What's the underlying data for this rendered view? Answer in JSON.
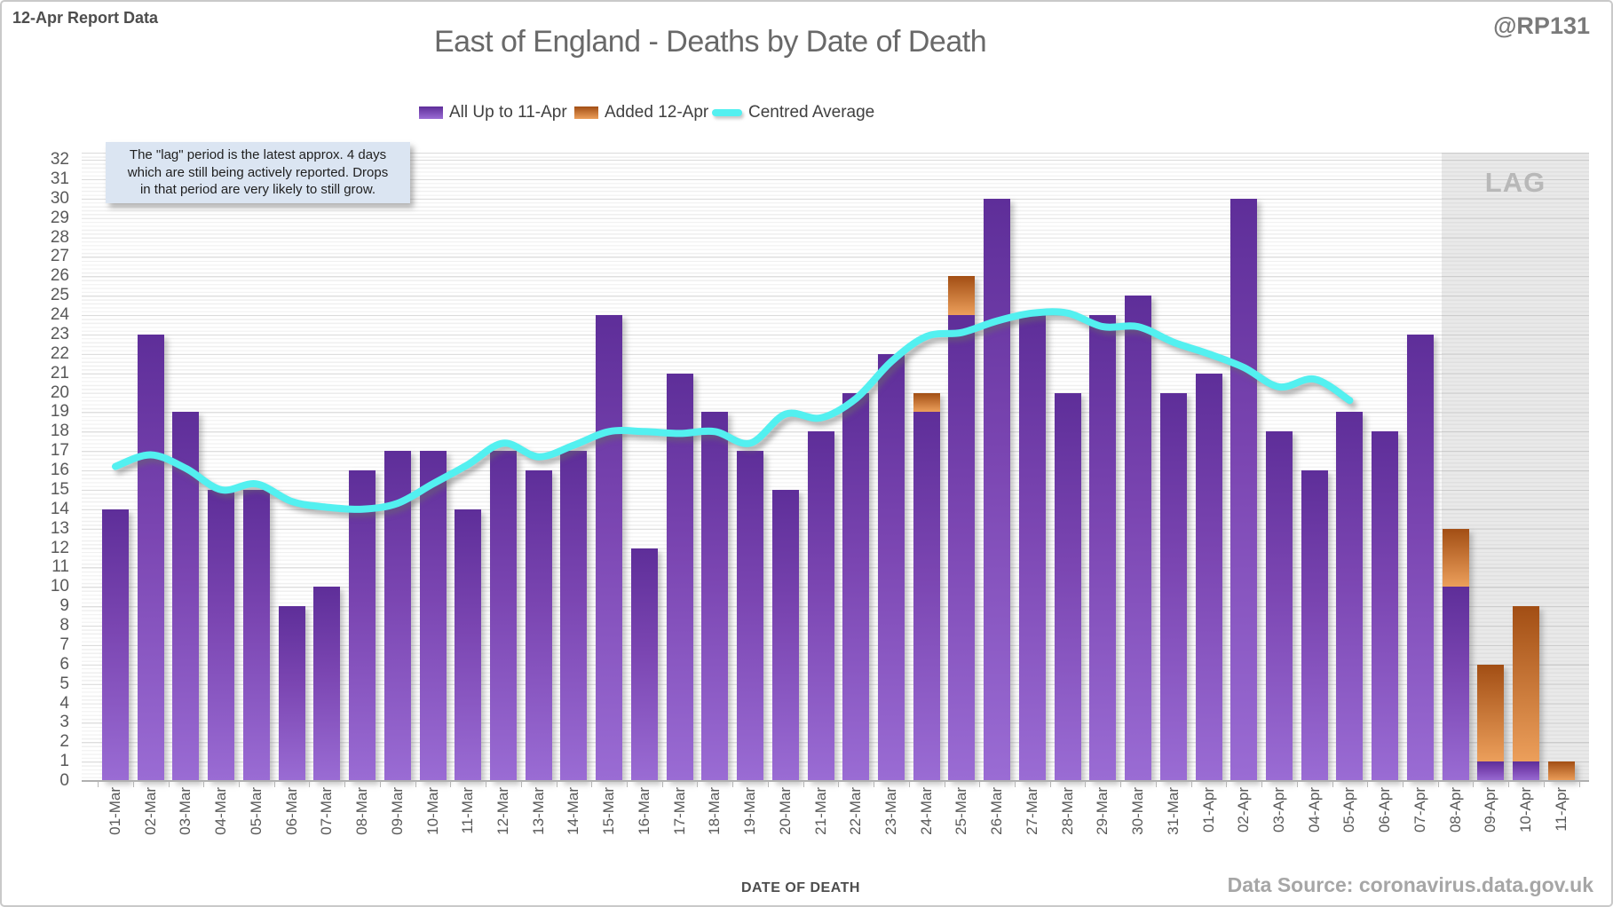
{
  "header": {
    "report_label": "12-Apr Report Data",
    "handle": "@RP131",
    "title": "East of England - Deaths by Date of Death"
  },
  "legend": [
    {
      "label": "All Up to 11-Apr",
      "type": "bar",
      "color_top": "#5e2e99",
      "color_bottom": "#9a6cd4"
    },
    {
      "label": "Added 12-Apr",
      "type": "bar",
      "color_top": "#a24e14",
      "color_bottom": "#ec9f5b"
    },
    {
      "label": "Centred Average",
      "type": "line",
      "color": "#53f0f0"
    }
  ],
  "annotation": {
    "lines": [
      "The \"lag\" period is the latest approx. 4 days",
      "which are still being actively reported.  Drops",
      "in that period are very likely to still grow."
    ]
  },
  "lag": {
    "label": "LAG",
    "dates": [
      "08-Apr",
      "09-Apr",
      "10-Apr",
      "11-Apr"
    ]
  },
  "axes": {
    "x_title": "DATE OF DEATH",
    "y_min": 0,
    "y_max": 32,
    "y_step": 1
  },
  "footer": {
    "source": "Data Source: coronavirus.data.gov.uk"
  },
  "colors": {
    "purple_top": "#5e2e99",
    "purple_mid": "#7b46b2",
    "purple_bottom": "#9a6cd4",
    "orange_top": "#a24e14",
    "orange_bottom": "#ec9f5b",
    "line_cyan": "#53f0f0",
    "lag_bg": "#e9e9e9",
    "annotation_bg": "#dbe5f2"
  },
  "chart_data": {
    "type": "bar",
    "subtype": "stacked-with-line",
    "title": "East of England - Deaths by Date of Death",
    "xlabel": "DATE OF DEATH",
    "ylabel": "",
    "ylim": [
      0,
      32
    ],
    "grid": true,
    "legend_position": "top",
    "categories": [
      "01-Mar",
      "02-Mar",
      "03-Mar",
      "04-Mar",
      "05-Mar",
      "06-Mar",
      "07-Mar",
      "08-Mar",
      "09-Mar",
      "10-Mar",
      "11-Mar",
      "12-Mar",
      "13-Mar",
      "14-Mar",
      "15-Mar",
      "16-Mar",
      "17-Mar",
      "18-Mar",
      "19-Mar",
      "20-Mar",
      "21-Mar",
      "22-Mar",
      "23-Mar",
      "24-Mar",
      "25-Mar",
      "26-Mar",
      "27-Mar",
      "28-Mar",
      "29-Mar",
      "30-Mar",
      "31-Mar",
      "01-Apr",
      "02-Apr",
      "03-Apr",
      "04-Apr",
      "05-Apr",
      "06-Apr",
      "07-Apr",
      "08-Apr",
      "09-Apr",
      "10-Apr",
      "11-Apr"
    ],
    "series": [
      {
        "name": "All Up to 11-Apr",
        "type": "bar",
        "values": [
          14,
          23,
          19,
          15,
          15,
          9,
          10,
          16,
          17,
          17,
          14,
          17,
          16,
          17,
          24,
          12,
          21,
          19,
          17,
          15,
          18,
          20,
          22,
          19,
          24,
          30,
          24,
          20,
          24,
          25,
          20,
          21,
          30,
          18,
          16,
          19,
          18,
          23,
          10,
          1,
          1,
          0
        ]
      },
      {
        "name": "Added 12-Apr",
        "type": "bar",
        "values": [
          0,
          0,
          0,
          0,
          0,
          0,
          0,
          0,
          0,
          0,
          0,
          0,
          0,
          0,
          0,
          0,
          0,
          0,
          0,
          0,
          0,
          0,
          0,
          1,
          2,
          0,
          0,
          0,
          0,
          0,
          0,
          0,
          0,
          0,
          0,
          0,
          0,
          0,
          3,
          5,
          8,
          1
        ]
      },
      {
        "name": "Centred Average",
        "type": "line",
        "values": [
          16.2,
          16.8,
          16.1,
          15,
          15.3,
          14.4,
          14.1,
          14,
          14.3,
          15.3,
          16.3,
          17.4,
          16.7,
          17.3,
          18,
          18,
          17.9,
          18,
          17.4,
          18.9,
          18.7,
          19.7,
          21.6,
          22.9,
          23.1,
          23.7,
          24.1,
          24.1,
          23.4,
          23.4,
          22.6,
          22,
          21.3,
          20.3,
          20.7,
          19.6,
          null,
          null,
          null,
          null,
          null,
          null
        ]
      }
    ]
  }
}
